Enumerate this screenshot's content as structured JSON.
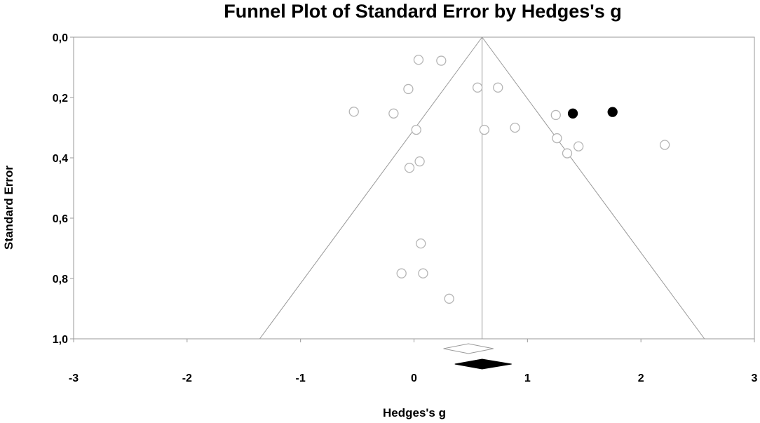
{
  "chart_data": {
    "type": "scatter",
    "title": "Funnel Plot of Standard Error by Hedges's g",
    "xlabel": "Hedges's g",
    "ylabel": "Standard Error",
    "xlim": [
      -3,
      3
    ],
    "ylim": [
      0,
      1.0
    ],
    "y_inverted": true,
    "x_ticks": [
      -3,
      -2,
      -1,
      0,
      1,
      2,
      3
    ],
    "x_tick_labels": [
      "-3",
      "-2",
      "-1",
      "0",
      "1",
      "2",
      "3"
    ],
    "y_ticks": [
      0,
      0.2,
      0.4,
      0.6,
      0.8,
      1.0
    ],
    "y_tick_labels": [
      "0,0",
      "0,2",
      "0,4",
      "0,6",
      "0,8",
      "1,0"
    ],
    "grid": false,
    "funnel_center": 0.6,
    "series": [
      {
        "style": "open circle",
        "color": "#b5b5b5",
        "points": [
          {
            "x": 0.04,
            "y": 0.075
          },
          {
            "x": 0.24,
            "y": 0.078
          },
          {
            "x": -0.05,
            "y": 0.172
          },
          {
            "x": 0.56,
            "y": 0.167
          },
          {
            "x": 0.74,
            "y": 0.167
          },
          {
            "x": -0.53,
            "y": 0.247
          },
          {
            "x": -0.18,
            "y": 0.253
          },
          {
            "x": 0.02,
            "y": 0.307
          },
          {
            "x": 0.62,
            "y": 0.307
          },
          {
            "x": 0.89,
            "y": 0.3
          },
          {
            "x": 1.25,
            "y": 0.258
          },
          {
            "x": 1.26,
            "y": 0.335
          },
          {
            "x": 1.45,
            "y": 0.362
          },
          {
            "x": 1.35,
            "y": 0.385
          },
          {
            "x": 2.21,
            "y": 0.357
          },
          {
            "x": 0.05,
            "y": 0.412
          },
          {
            "x": -0.04,
            "y": 0.433
          },
          {
            "x": 0.06,
            "y": 0.684
          },
          {
            "x": -0.11,
            "y": 0.783
          },
          {
            "x": 0.08,
            "y": 0.783
          },
          {
            "x": 0.31,
            "y": 0.867
          }
        ]
      },
      {
        "style": "filled circle",
        "color": "#000000",
        "points": [
          {
            "x": 1.4,
            "y": 0.253
          },
          {
            "x": 1.75,
            "y": 0.248
          }
        ]
      }
    ],
    "summary_diamonds": [
      {
        "style": "open",
        "center": 0.48,
        "lower": 0.26,
        "upper": 0.7
      },
      {
        "style": "filled",
        "center": 0.6,
        "lower": 0.36,
        "upper": 0.86
      }
    ]
  }
}
